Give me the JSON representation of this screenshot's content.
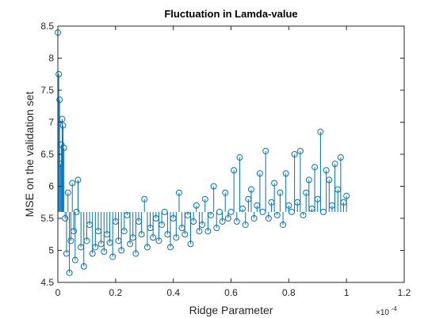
{
  "chart_data": {
    "type": "scatter",
    "style": "stem",
    "title": "Fluctuation in Lamda-value",
    "xlabel": "Ridge Parameter",
    "ylabel": "MSE on the validation set",
    "x_exponent_prefix": "×10",
    "x_exponent_power": "-4",
    "xlim": [
      0,
      1.2
    ],
    "ylim": [
      4.5,
      8.5
    ],
    "xticks": [
      0,
      0.2,
      0.4,
      0.6,
      0.8,
      1,
      1.2
    ],
    "xtick_labels": [
      "0",
      "0.2",
      "0.4",
      "0.6",
      "0.8",
      "1",
      "1.2"
    ],
    "yticks": [
      4.5,
      5,
      5.5,
      6,
      6.5,
      7,
      7.5,
      8,
      8.5
    ],
    "ytick_labels": [
      "4.5",
      "5",
      "5.5",
      "6",
      "6.5",
      "7",
      "7.5",
      "8",
      "8.5"
    ],
    "stem_baseline": 5.6,
    "grid": false,
    "series_color": "#0072BD",
    "series": [
      {
        "marker": "circle",
        "x": [
          0.0,
          0.003,
          0.006,
          0.009,
          0.012,
          0.015,
          0.018,
          0.021,
          0.025,
          0.03,
          0.035,
          0.04,
          0.045,
          0.05,
          0.055,
          0.06,
          0.065,
          0.07,
          0.08,
          0.09,
          0.1,
          0.11,
          0.12,
          0.13,
          0.14,
          0.15,
          0.16,
          0.17,
          0.18,
          0.19,
          0.2,
          0.21,
          0.22,
          0.23,
          0.24,
          0.25,
          0.26,
          0.27,
          0.28,
          0.29,
          0.3,
          0.31,
          0.32,
          0.33,
          0.34,
          0.35,
          0.36,
          0.37,
          0.38,
          0.39,
          0.4,
          0.41,
          0.42,
          0.43,
          0.44,
          0.45,
          0.46,
          0.47,
          0.48,
          0.49,
          0.5,
          0.51,
          0.52,
          0.53,
          0.54,
          0.55,
          0.56,
          0.57,
          0.58,
          0.59,
          0.6,
          0.61,
          0.62,
          0.63,
          0.64,
          0.65,
          0.66,
          0.67,
          0.68,
          0.69,
          0.7,
          0.71,
          0.72,
          0.73,
          0.74,
          0.75,
          0.76,
          0.77,
          0.78,
          0.79,
          0.8,
          0.81,
          0.82,
          0.83,
          0.84,
          0.85,
          0.86,
          0.87,
          0.88,
          0.89,
          0.9,
          0.91,
          0.92,
          0.93,
          0.94,
          0.95,
          0.96,
          0.97,
          0.98,
          0.99,
          1.0
        ],
        "y": [
          8.4,
          7.75,
          7.35,
          6.35,
          6.65,
          7.05,
          6.95,
          6.6,
          5.5,
          4.95,
          5.9,
          4.65,
          5.15,
          6.05,
          5.3,
          4.85,
          5.6,
          6.1,
          5.05,
          4.75,
          5.15,
          5.4,
          4.95,
          5.05,
          5.3,
          5.1,
          4.98,
          5.25,
          5.12,
          4.9,
          5.45,
          5.15,
          5.0,
          5.3,
          5.55,
          5.1,
          5.2,
          4.95,
          5.45,
          5.25,
          5.8,
          5.05,
          5.35,
          5.2,
          5.5,
          5.15,
          5.4,
          5.6,
          5.25,
          5.05,
          5.5,
          5.2,
          5.9,
          5.35,
          5.25,
          5.55,
          5.1,
          5.45,
          5.7,
          5.3,
          5.4,
          5.8,
          5.3,
          5.55,
          6.0,
          5.35,
          5.6,
          5.45,
          5.9,
          5.5,
          5.6,
          6.25,
          5.45,
          6.45,
          5.65,
          5.4,
          5.8,
          5.95,
          5.5,
          5.7,
          6.2,
          5.6,
          6.55,
          5.5,
          5.75,
          6.05,
          5.55,
          5.9,
          5.4,
          6.2,
          5.7,
          5.6,
          6.5,
          5.75,
          6.55,
          5.55,
          5.9,
          6.1,
          5.65,
          6.3,
          5.8,
          6.85,
          5.6,
          6.25,
          6.1,
          5.7,
          6.35,
          5.95,
          6.45,
          5.75,
          5.85
        ]
      }
    ]
  }
}
